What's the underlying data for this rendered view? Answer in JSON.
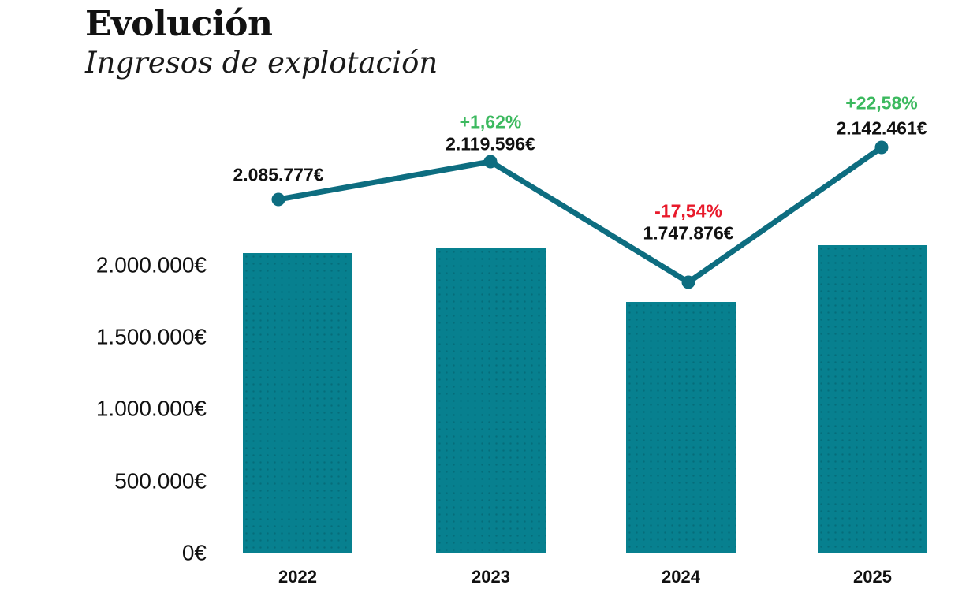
{
  "header": {
    "title": "Evolución",
    "subtitle": "Ingresos de explotación"
  },
  "colors": {
    "bar": "#07808f",
    "line": "#0d6d80",
    "point": "#0d6d80",
    "positive": "#3cb95f",
    "negative": "#e81a2b",
    "text": "#111111"
  },
  "chart_data": {
    "type": "bar+line",
    "title": "Evolución",
    "subtitle": "Ingresos de explotación",
    "categories": [
      "2022",
      "2023",
      "2024",
      "2025"
    ],
    "series": [
      {
        "name": "Ingresos de explotación",
        "values": [
          2085777,
          2119596,
          1747876,
          2142461
        ]
      }
    ],
    "value_labels": [
      "2.085.777€",
      "2.119.596€",
      "1.747.876€",
      "2.142.461€"
    ],
    "pct_labels": [
      null,
      "+1,62%",
      "-17,54%",
      "+22,58%"
    ],
    "pct_kinds": [
      null,
      "positive",
      "negative",
      "positive"
    ],
    "y_ticks": [
      {
        "label": "0€",
        "value": 0
      },
      {
        "label": "500.000€",
        "value": 500000
      },
      {
        "label": "1.000.000€",
        "value": 1000000
      },
      {
        "label": "1.500.000€",
        "value": 1500000
      },
      {
        "label": "2.000.000€",
        "value": 2000000
      }
    ],
    "ylim": [
      0,
      2200000
    ],
    "currency": "EUR",
    "grid": false,
    "legend": false
  }
}
